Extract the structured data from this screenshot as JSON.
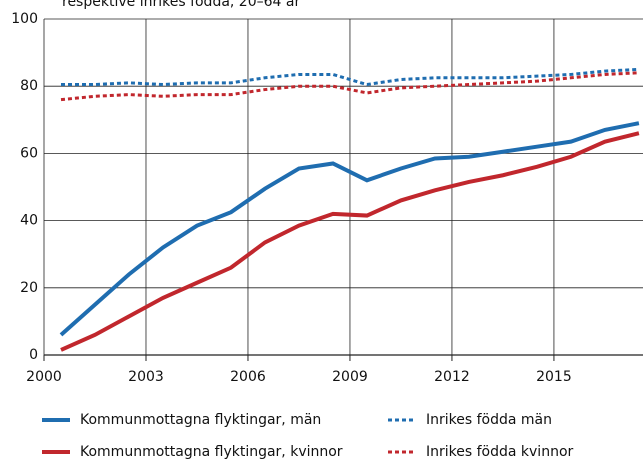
{
  "chart_data": {
    "type": "line",
    "subtitle": "respektive inrikes födda, 20–64 år",
    "x": [
      2000.5,
      2001.5,
      2002.5,
      2003.5,
      2004.5,
      2005.5,
      2006.5,
      2007.5,
      2008.5,
      2009.5,
      2010.5,
      2011.5,
      2012.5,
      2013.5,
      2014.5,
      2015.5,
      2016.5,
      2017.5
    ],
    "series": [
      {
        "name": "Kommunmottagna flyktingar, män",
        "color": "#1f6db0",
        "dashed": false,
        "values": [
          6,
          15,
          24,
          32,
          38.5,
          42.5,
          49.5,
          55.5,
          57,
          52,
          55.5,
          58.5,
          59,
          60.5,
          62,
          63.5,
          67,
          69
        ]
      },
      {
        "name": "Kommunmottagna flyktingar, kvinnor",
        "color": "#c1272d",
        "dashed": false,
        "values": [
          1.5,
          6,
          11.5,
          17,
          21.5,
          26,
          33.5,
          38.5,
          42,
          41.5,
          46,
          49,
          51.5,
          53.5,
          56,
          59,
          63.5,
          66
        ]
      },
      {
        "name": "Inrikes födda män",
        "color": "#1f6db0",
        "dashed": true,
        "values": [
          80.5,
          80.5,
          81,
          80.5,
          81,
          81,
          82.5,
          83.5,
          83.5,
          80.5,
          82,
          82.5,
          82.5,
          82.5,
          83,
          83.5,
          84.5,
          85
        ]
      },
      {
        "name": "Inrikes födda kvinnor",
        "color": "#c1272d",
        "dashed": true,
        "values": [
          76,
          77,
          77.5,
          77,
          77.5,
          77.5,
          79,
          80,
          80,
          78,
          79.5,
          80,
          80.5,
          81,
          81.5,
          82.5,
          83.5,
          84
        ]
      }
    ],
    "xlim": [
      2000,
      2017.62
    ],
    "xticks": [
      2000,
      2003,
      2006,
      2009,
      2012,
      2015
    ],
    "ylim": [
      0,
      100
    ],
    "yticks": [
      0,
      20,
      40,
      60,
      80,
      100
    ],
    "grid": true
  }
}
